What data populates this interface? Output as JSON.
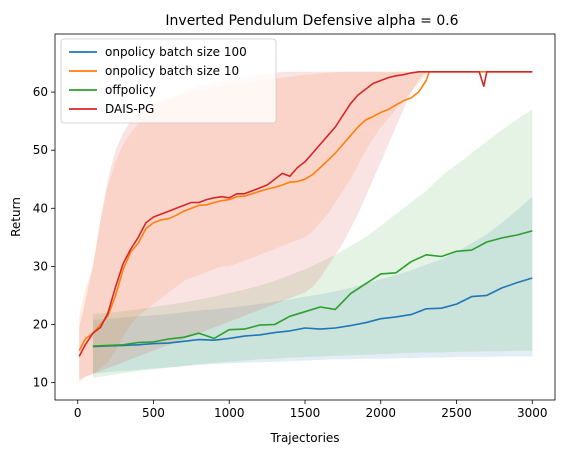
{
  "chart_data": {
    "type": "line",
    "title": "Inverted Pendulum Defensive alpha = 0.6",
    "xlabel": "Trajectories",
    "ylabel": "Return",
    "xlim": [
      -150,
      3150
    ],
    "ylim": [
      7,
      70
    ],
    "xticks": [
      0,
      500,
      1000,
      1500,
      2000,
      2500,
      3000
    ],
    "yticks": [
      10,
      20,
      30,
      40,
      50,
      60
    ],
    "grid": false,
    "legend_position": "top-left",
    "series": [
      {
        "name": "onpolicy batch size 100",
        "color": "#1f77b4",
        "x": [
          100,
          200,
          300,
          400,
          500,
          600,
          700,
          800,
          900,
          1000,
          1100,
          1200,
          1300,
          1400,
          1500,
          1600,
          1700,
          1800,
          1900,
          2000,
          2100,
          2200,
          2300,
          2400,
          2500,
          2600,
          2700,
          2800,
          2900,
          3000
        ],
        "y": [
          16.2,
          16.3,
          16.4,
          16.5,
          16.7,
          16.8,
          17.1,
          17.4,
          17.3,
          17.6,
          18.0,
          18.2,
          18.6,
          18.9,
          19.4,
          19.2,
          19.4,
          19.8,
          20.3,
          21.0,
          21.3,
          21.7,
          22.7,
          22.8,
          23.5,
          24.8,
          25.0,
          26.3,
          27.2,
          28.0
        ],
        "upper": [
          20.8,
          21.0,
          21.2,
          21.4,
          21.6,
          21.8,
          22.1,
          22.4,
          22.6,
          22.9,
          23.2,
          23.5,
          23.9,
          24.3,
          24.8,
          25.2,
          25.7,
          26.3,
          27.0,
          27.8,
          28.5,
          29.3,
          30.3,
          31.2,
          32.5,
          34.0,
          35.5,
          37.5,
          39.7,
          42.0
        ],
        "lower": [
          11.5,
          11.8,
          12.0,
          12.2,
          12.4,
          12.6,
          12.8,
          13.0,
          13.2,
          13.3,
          13.4,
          13.5,
          13.6,
          13.7,
          13.8,
          13.9,
          14.0,
          14.0,
          14.1,
          14.1,
          14.2,
          14.2,
          14.3,
          14.3,
          14.4,
          14.4,
          14.4,
          14.5,
          14.5,
          14.5
        ]
      },
      {
        "name": "onpolicy batch size 10",
        "color": "#ff7f0e",
        "x": [
          10,
          50,
          100,
          150,
          200,
          250,
          300,
          350,
          400,
          450,
          500,
          550,
          600,
          650,
          700,
          750,
          800,
          850,
          900,
          950,
          1000,
          1050,
          1100,
          1150,
          1200,
          1250,
          1300,
          1350,
          1400,
          1450,
          1500,
          1550,
          1600,
          1650,
          1700,
          1750,
          1800,
          1850,
          1900,
          1950,
          2000,
          2050,
          2100,
          2150,
          2200,
          2250,
          2300,
          2320,
          2400,
          2500,
          2600,
          2700,
          2800,
          2900,
          3000
        ],
        "y": [
          15.5,
          17.5,
          18.5,
          20.0,
          21.5,
          25.0,
          29.5,
          32.5,
          34.0,
          36.5,
          37.5,
          38.0,
          38.2,
          38.8,
          39.5,
          40.0,
          40.5,
          40.6,
          41.0,
          41.3,
          41.5,
          42.0,
          42.1,
          42.5,
          42.9,
          43.3,
          43.6,
          44.0,
          44.5,
          44.6,
          45.0,
          45.8,
          47.0,
          48.2,
          49.5,
          51.0,
          52.5,
          54.0,
          55.2,
          55.8,
          56.5,
          57.0,
          57.8,
          58.5,
          59.0,
          60.0,
          62.0,
          63.5,
          63.5,
          63.5,
          63.5,
          63.5,
          63.5,
          63.5,
          63.5
        ],
        "upper": [
          21.5,
          26.0,
          30.0,
          38.0,
          44.0,
          48.0,
          51.0,
          53.0,
          54.5,
          56.0,
          57.0,
          58.0,
          58.5,
          59.0,
          59.5,
          60.0,
          60.3,
          60.5,
          60.8,
          61.0,
          61.2,
          61.4,
          61.6,
          61.8,
          62.0,
          62.2,
          62.3,
          62.5,
          62.6,
          62.8,
          63.0,
          63.1,
          63.2,
          63.3,
          63.4,
          63.5,
          63.5,
          63.5,
          63.5,
          63.5,
          63.5,
          63.5,
          63.5,
          63.5,
          63.5,
          63.5,
          63.5,
          63.5,
          63.5,
          63.5,
          63.5,
          63.5,
          63.5,
          63.5,
          63.5
        ],
        "lower": [
          10.0,
          11.0,
          11.5,
          12.5,
          13.5,
          15.5,
          18.0,
          20.0,
          21.5,
          22.5,
          23.5,
          24.5,
          25.5,
          26.5,
          27.5,
          28.0,
          28.5,
          29.0,
          29.5,
          30.0,
          30.0,
          30.5,
          31.0,
          31.5,
          32.0,
          32.5,
          33.0,
          33.5,
          34.0,
          34.5,
          35.0,
          36.0,
          37.5,
          39.0,
          41.0,
          43.0,
          45.0,
          47.5,
          50.0,
          52.0,
          54.0,
          55.5,
          57.0,
          58.5,
          60.0,
          61.5,
          63.0,
          63.5,
          63.5,
          63.5,
          63.5,
          63.5,
          63.5,
          63.5,
          63.5
        ]
      },
      {
        "name": "offpolicy",
        "color": "#2ca02c",
        "x": [
          100,
          200,
          300,
          400,
          500,
          600,
          700,
          800,
          900,
          1000,
          1100,
          1200,
          1300,
          1400,
          1500,
          1600,
          1700,
          1800,
          1900,
          2000,
          2100,
          2200,
          2300,
          2400,
          2500,
          2600,
          2700,
          2800,
          2900,
          3000
        ],
        "y": [
          16.3,
          16.4,
          16.5,
          16.9,
          17.0,
          17.5,
          17.8,
          18.5,
          17.6,
          19.1,
          19.2,
          19.9,
          20.0,
          21.4,
          22.2,
          23.0,
          22.6,
          25.3,
          27.0,
          28.7,
          28.9,
          30.8,
          32.0,
          31.7,
          32.6,
          32.8,
          34.2,
          34.9,
          35.4,
          36.1
        ],
        "upper": [
          21.8,
          22.0,
          22.3,
          22.6,
          23.0,
          23.4,
          23.8,
          24.3,
          24.8,
          25.4,
          26.0,
          26.7,
          27.5,
          28.5,
          29.5,
          30.7,
          32.0,
          33.5,
          35.0,
          37.0,
          39.0,
          41.0,
          43.0,
          45.5,
          47.5,
          49.5,
          51.5,
          53.5,
          55.3,
          57.0
        ],
        "lower": [
          10.8,
          11.2,
          11.6,
          12.0,
          12.3,
          12.6,
          12.9,
          13.2,
          13.4,
          13.6,
          13.8,
          14.0,
          14.1,
          14.3,
          14.4,
          14.5,
          14.6,
          14.7,
          14.8,
          14.9,
          15.0,
          15.1,
          15.2,
          15.2,
          15.3,
          15.3,
          15.4,
          15.4,
          15.5,
          15.5
        ]
      },
      {
        "name": "DAIS-PG",
        "color": "#d62728",
        "x": [
          10,
          50,
          100,
          150,
          200,
          250,
          300,
          350,
          400,
          450,
          500,
          550,
          600,
          650,
          700,
          750,
          800,
          850,
          900,
          950,
          1000,
          1050,
          1100,
          1150,
          1200,
          1250,
          1300,
          1350,
          1400,
          1450,
          1500,
          1550,
          1600,
          1650,
          1700,
          1750,
          1800,
          1850,
          1900,
          1950,
          2000,
          2050,
          2100,
          2150,
          2200,
          2250,
          2300,
          2350,
          2400,
          2500,
          2600,
          2650,
          2680,
          2700,
          2800,
          2900,
          3000
        ],
        "y": [
          14.5,
          16.5,
          18.5,
          19.5,
          22.0,
          26.5,
          30.5,
          33.0,
          35.0,
          37.5,
          38.5,
          39.0,
          39.5,
          40.0,
          40.5,
          41.0,
          41.0,
          41.5,
          41.8,
          42.0,
          41.8,
          42.5,
          42.5,
          43.0,
          43.5,
          44.0,
          45.0,
          46.0,
          45.5,
          47.0,
          48.0,
          49.5,
          51.0,
          52.5,
          54.0,
          56.0,
          58.0,
          59.5,
          60.5,
          61.5,
          62.0,
          62.5,
          62.8,
          63.0,
          63.3,
          63.5,
          63.5,
          63.5,
          63.5,
          63.5,
          63.5,
          63.5,
          61.0,
          63.5,
          63.5,
          63.5,
          63.5
        ],
        "upper": [
          19.5,
          24.0,
          30.0,
          38.0,
          45.0,
          50.0,
          53.0,
          55.0,
          56.5,
          57.5,
          58.0,
          58.5,
          59.0,
          59.5,
          60.0,
          60.5,
          61.0,
          61.3,
          61.6,
          61.9,
          62.1,
          62.3,
          62.5,
          62.7,
          62.9,
          63.1,
          63.3,
          63.5,
          63.5,
          63.5,
          63.5,
          63.5,
          63.5,
          63.5,
          63.5,
          63.5,
          63.5,
          63.5,
          63.5,
          63.5,
          63.5,
          63.5,
          63.5,
          63.5,
          63.5,
          63.5,
          63.5,
          63.5,
          63.5,
          63.5,
          63.5,
          63.5,
          63.5,
          63.5,
          63.5,
          63.5,
          63.5
        ],
        "lower": [
          10.5,
          11.0,
          11.5,
          12.0,
          12.5,
          13.0,
          13.5,
          14.0,
          14.5,
          15.0,
          15.5,
          16.0,
          16.5,
          17.0,
          17.5,
          18.0,
          18.5,
          19.0,
          19.5,
          20.0,
          20.5,
          21.0,
          21.5,
          22.0,
          22.5,
          23.0,
          23.5,
          24.0,
          24.5,
          25.0,
          25.5,
          26.5,
          28.0,
          30.0,
          32.0,
          34.0,
          36.5,
          39.0,
          42.0,
          45.0,
          48.0,
          51.0,
          54.0,
          57.0,
          60.0,
          62.0,
          63.5,
          63.5,
          63.5,
          63.5,
          63.5,
          63.5,
          63.5,
          63.5,
          63.5,
          63.5,
          63.5
        ]
      }
    ]
  }
}
